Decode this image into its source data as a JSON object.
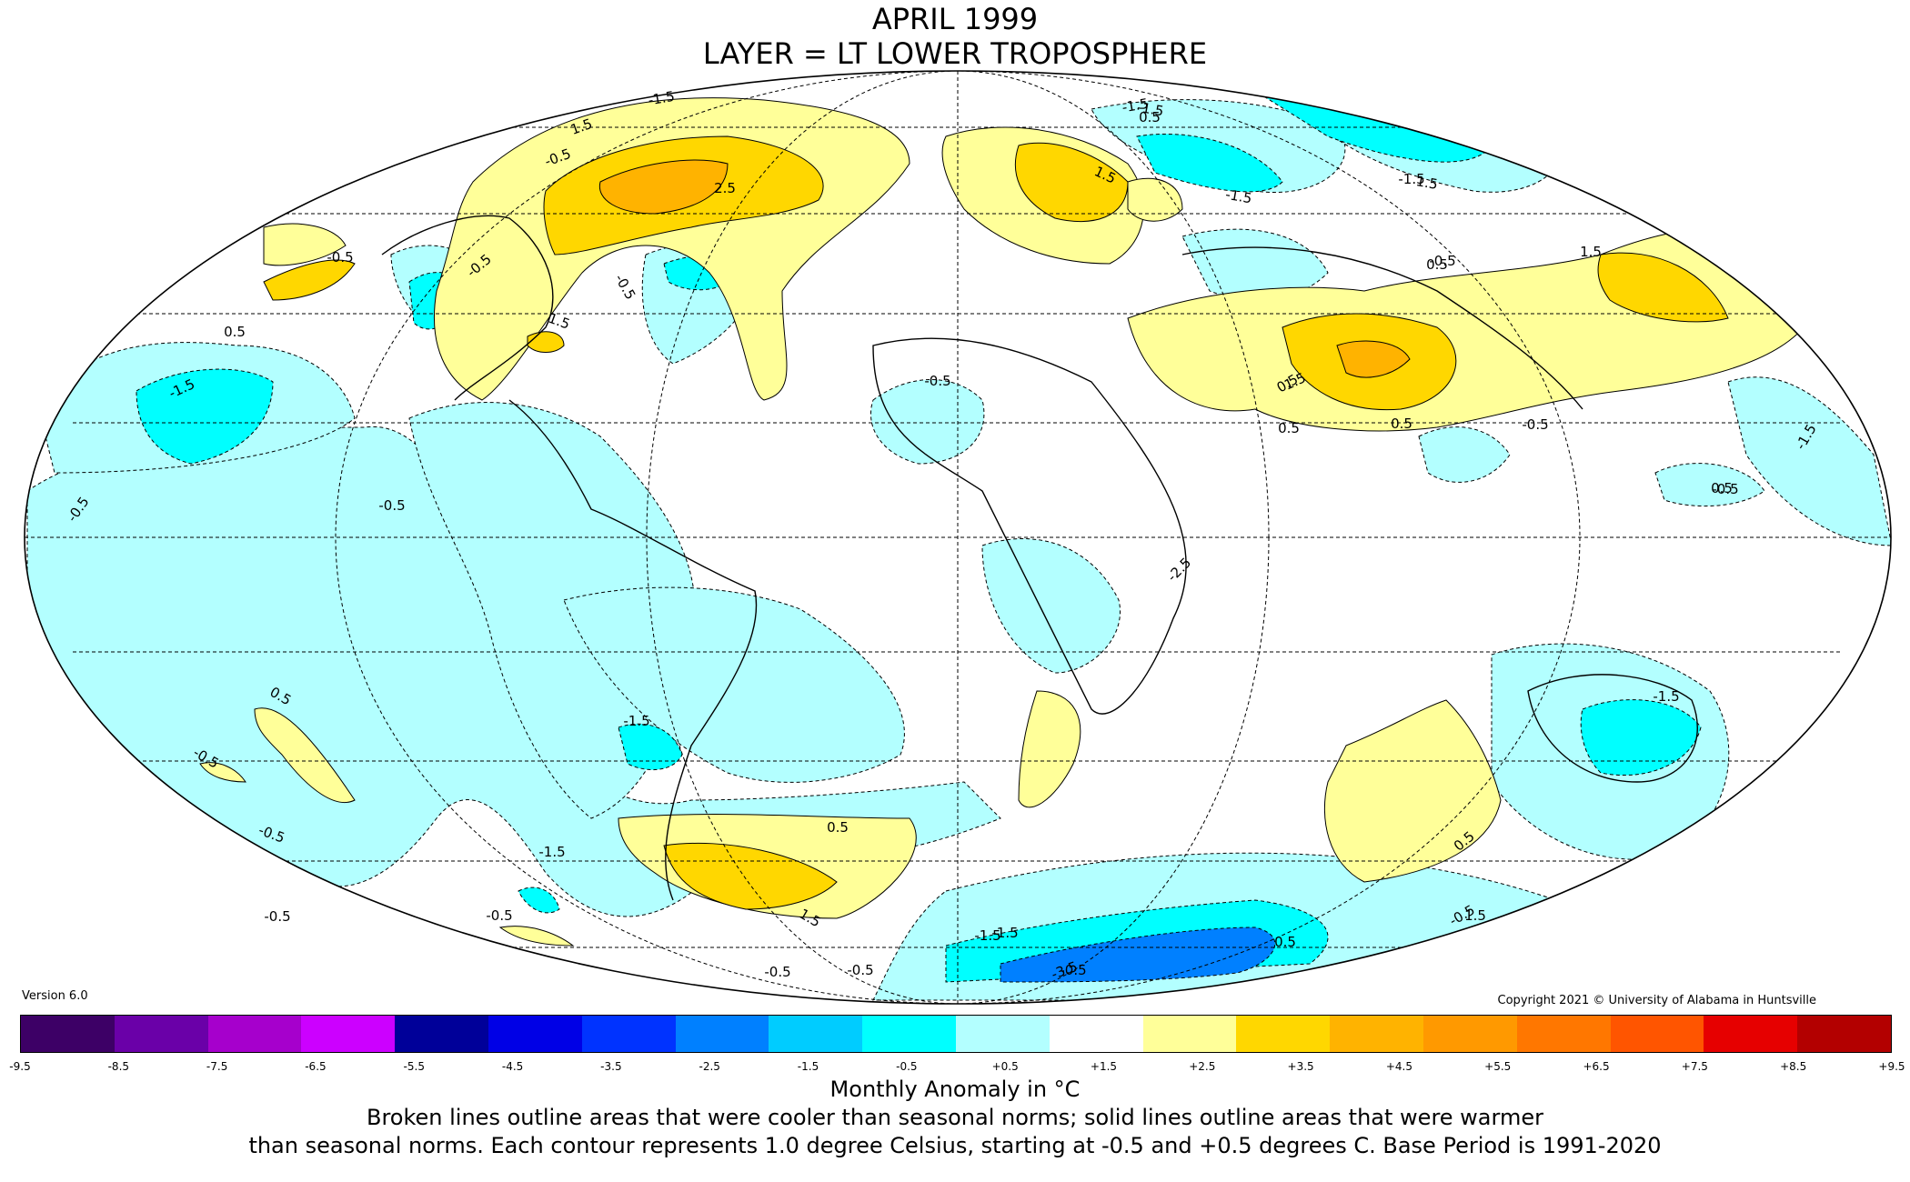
{
  "title": "APRIL 1999",
  "subtitle": "LAYER = LT LOWER TROPOSPHERE",
  "version": "Version 6.0",
  "copyright": "Copyright 2021 © University of Alabama in Huntsville",
  "colorbar": {
    "label": "Monthly Anomaly in °C",
    "ticks": [
      "-9.5",
      "-8.5",
      "-7.5",
      "-6.5",
      "-5.5",
      "-4.5",
      "-3.5",
      "-2.5",
      "-1.5",
      "-0.5",
      "+0.5",
      "+1.5",
      "+2.5",
      "+3.5",
      "+4.5",
      "+5.5",
      "+6.5",
      "+7.5",
      "+8.5",
      "+9.5"
    ],
    "colors": [
      "#3d0066",
      "#6a00a8",
      "#a600cc",
      "#cc00ff",
      "#000099",
      "#0000e6",
      "#0033ff",
      "#0080ff",
      "#00ccff",
      "#00ffff",
      "#b3ffff",
      "#ffffff",
      "#ffff99",
      "#ffd700",
      "#ffb300",
      "#ff9900",
      "#ff7700",
      "#ff5500",
      "#e60000",
      "#b30000"
    ]
  },
  "caption_line1": "Broken lines outline areas that were cooler than seasonal norms; solid lines outline areas that were warmer",
  "caption_line2": "than seasonal norms. Each contour represents 1.0 degree Celsius, starting at -0.5 and +0.5 degrees C. Base Period is 1991-2020",
  "contour_labels": [
    "-1.5",
    "1.5",
    "-0.5",
    "2.5",
    "-1.5",
    "1.5",
    "-1.5",
    "1.5",
    "0.5",
    "-1.5",
    "0.5",
    "1.5",
    "-1.5",
    "-0.5",
    "-0.5",
    "1.5",
    "0.5",
    "-0.5",
    "-0.5",
    "-0.5",
    "-0.5",
    "0.5",
    "-1.5",
    "0.5",
    "-0.5",
    "0.5",
    "1.5",
    "-1.5",
    "-0.5",
    "0.5",
    "-0.5",
    "-1.5",
    "0.5",
    "-0.5",
    "-2.5",
    "-3.5",
    "-1.5",
    "-0.5",
    "-1.5",
    "0.5",
    "-1.5",
    "0.5",
    "-0.5",
    "-0.5",
    "1.5",
    "-0.5",
    "-0.5",
    "0.5",
    "-0.5",
    "1.5",
    "-1.5",
    "-0.5"
  ]
}
